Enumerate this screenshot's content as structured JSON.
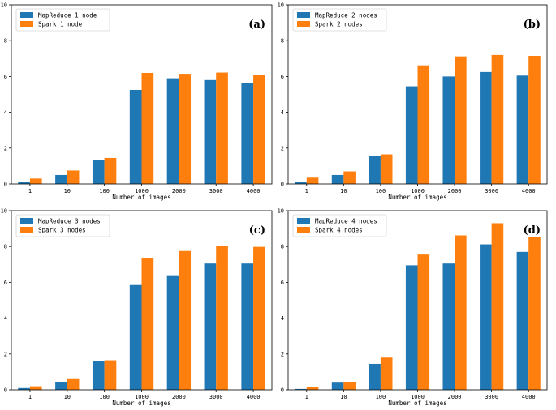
{
  "colors": {
    "mapreduce": "#1f77b4",
    "spark": "#ff7f0e"
  },
  "chart_data": [
    {
      "type": "bar",
      "panel": "(a)",
      "categories": [
        "1",
        "10",
        "100",
        "1000",
        "2000",
        "3000",
        "4000"
      ],
      "series": [
        {
          "name": "MapReduce 1 node",
          "values": [
            0.1,
            0.5,
            1.35,
            5.25,
            5.9,
            5.8,
            5.62
          ]
        },
        {
          "name": "Spark 1 node",
          "values": [
            0.3,
            0.75,
            1.45,
            6.2,
            6.15,
            6.22,
            6.1
          ]
        }
      ],
      "xlabel": "Number of images",
      "ylabel": "",
      "ylim": [
        0,
        10
      ],
      "yticks": [
        0,
        2,
        4,
        6,
        8,
        10
      ],
      "legend": "top-left"
    },
    {
      "type": "bar",
      "panel": "(b)",
      "categories": [
        "1",
        "10",
        "100",
        "1000",
        "2000",
        "3000",
        "4000"
      ],
      "series": [
        {
          "name": "MapReduce 2 nodes",
          "values": [
            0.1,
            0.5,
            1.55,
            5.45,
            6.0,
            6.25,
            6.05
          ]
        },
        {
          "name": "Spark 2 nodes",
          "values": [
            0.35,
            0.7,
            1.65,
            6.62,
            7.12,
            7.2,
            7.15
          ]
        }
      ],
      "xlabel": "Number of images",
      "ylabel": "",
      "ylim": [
        0,
        10
      ],
      "yticks": [
        0,
        2,
        4,
        6,
        8,
        10
      ],
      "legend": "top-left"
    },
    {
      "type": "bar",
      "panel": "(c)",
      "categories": [
        "1",
        "10",
        "100",
        "1000",
        "2000",
        "3000",
        "4000"
      ],
      "series": [
        {
          "name": "MapReduce 3 nodes",
          "values": [
            0.1,
            0.45,
            1.6,
            5.85,
            6.35,
            7.05,
            7.05
          ]
        },
        {
          "name": "Spark 3 nodes",
          "values": [
            0.2,
            0.6,
            1.65,
            7.35,
            7.75,
            8.02,
            7.98
          ]
        }
      ],
      "xlabel": "Number of images",
      "ylabel": "",
      "ylim": [
        0,
        10
      ],
      "yticks": [
        0,
        2,
        4,
        6,
        8,
        10
      ],
      "legend": "top-left"
    },
    {
      "type": "bar",
      "panel": "(d)",
      "categories": [
        "1",
        "10",
        "100",
        "1000",
        "2000",
        "3000",
        "4000"
      ],
      "series": [
        {
          "name": "MapReduce 4 nodes",
          "values": [
            0.05,
            0.4,
            1.45,
            6.95,
            7.05,
            8.12,
            7.7
          ]
        },
        {
          "name": "Spark 4 nodes",
          "values": [
            0.15,
            0.45,
            1.8,
            7.55,
            8.62,
            9.3,
            8.52
          ]
        }
      ],
      "xlabel": "Number of images",
      "ylabel": "",
      "ylim": [
        0,
        10
      ],
      "yticks": [
        0,
        2,
        4,
        6,
        8,
        10
      ],
      "legend": "top-left"
    }
  ]
}
